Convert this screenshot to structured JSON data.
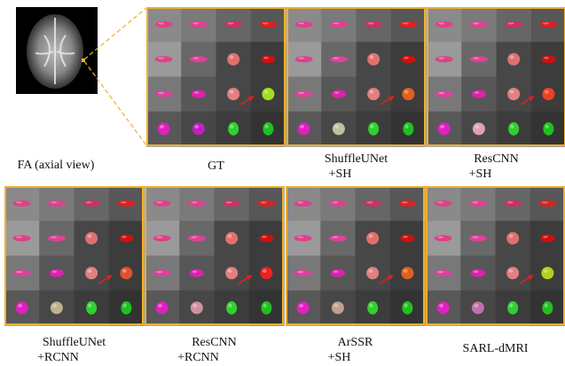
{
  "figure": {
    "fa_caption": "FA (axial view)",
    "panels": [
      {
        "caption": [
          "GT"
        ]
      },
      {
        "caption": [
          "ShuffleUNet",
          "+SH"
        ]
      },
      {
        "caption": [
          "ResCNN",
          "+SH"
        ]
      },
      {
        "caption": [
          "ShuffleUNet",
          "+RCNN"
        ]
      },
      {
        "caption": [
          "ResCNN",
          "+RCNN"
        ]
      },
      {
        "caption": [
          "ArSSR",
          "+SH"
        ]
      },
      {
        "caption": [
          "SARL-dMRI"
        ]
      }
    ]
  }
}
